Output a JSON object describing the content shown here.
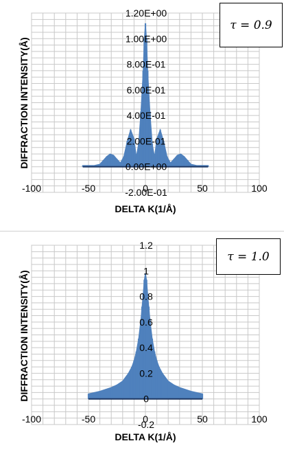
{
  "chart_data": [
    {
      "type": "bar",
      "annotation": "τ = 0.9",
      "xlabel": "DELTA K(1/Å)",
      "ylabel": "DIFFRACTION INTENSITY(Å)",
      "xlim": [
        -100,
        100
      ],
      "ylim": [
        -0.2,
        1.2
      ],
      "x_ticks": [
        "-100",
        "-50",
        "0",
        "50",
        "100"
      ],
      "y_ticks": [
        "-2.00E-01",
        "0.00E+00",
        "2.00E-01",
        "4.00E-01",
        "6.00E-01",
        "8.00E-01",
        "1.00E+00",
        "1.20E+00"
      ],
      "grid": true,
      "color": "#4f81bd",
      "baseline_color": "#1f3864",
      "x_range": [
        -55,
        55
      ],
      "series": [
        {
          "x": [
            -55,
            -50,
            -45,
            -40,
            -37,
            -34,
            -31,
            -28,
            -25,
            -22,
            -19,
            -16,
            -13,
            -10,
            -8,
            -6,
            -4,
            -2,
            -1,
            0,
            1,
            2,
            4,
            6,
            8,
            10,
            13,
            16,
            19,
            22,
            25,
            28,
            31,
            34,
            37,
            40,
            45,
            50,
            55
          ],
          "values": [
            0.01,
            0.01,
            0.01,
            0.02,
            0.05,
            0.08,
            0.1,
            0.09,
            0.06,
            0.03,
            0.08,
            0.2,
            0.29,
            0.22,
            0.08,
            0.18,
            0.43,
            0.75,
            1.0,
            1.12,
            1.0,
            0.75,
            0.43,
            0.18,
            0.08,
            0.22,
            0.29,
            0.2,
            0.08,
            0.03,
            0.06,
            0.09,
            0.1,
            0.08,
            0.05,
            0.02,
            0.01,
            0.01,
            0.01
          ]
        }
      ]
    },
    {
      "type": "bar",
      "annotation": "τ = 1.0",
      "xlabel": "DELTA K(1/Å)",
      "ylabel": "DIFFRACTION INTENSITY(Å)",
      "xlim": [
        -100,
        100
      ],
      "ylim": [
        -0.2,
        1.2
      ],
      "x_ticks": [
        "-100",
        "-50",
        "0",
        "50",
        "100"
      ],
      "y_ticks": [
        "-0.2",
        "0",
        "0.2",
        "0.4",
        "0.6",
        "0.8",
        "1",
        "1.2"
      ],
      "grid": true,
      "color": "#4f81bd",
      "baseline_color": "#1f3864",
      "x_range": [
        -50,
        50
      ],
      "series": [
        {
          "x": [
            -50,
            -40,
            -30,
            -25,
            -20,
            -15,
            -12,
            -10,
            -8,
            -6,
            -4,
            -3,
            -2,
            -1,
            0,
            1,
            2,
            3,
            4,
            6,
            8,
            10,
            12,
            15,
            20,
            25,
            30,
            40,
            50
          ],
          "values": [
            0.04,
            0.06,
            0.09,
            0.11,
            0.14,
            0.2,
            0.25,
            0.3,
            0.37,
            0.47,
            0.62,
            0.72,
            0.82,
            0.93,
            0.98,
            0.93,
            0.82,
            0.72,
            0.62,
            0.47,
            0.37,
            0.3,
            0.25,
            0.2,
            0.14,
            0.11,
            0.09,
            0.06,
            0.04
          ]
        }
      ]
    }
  ]
}
